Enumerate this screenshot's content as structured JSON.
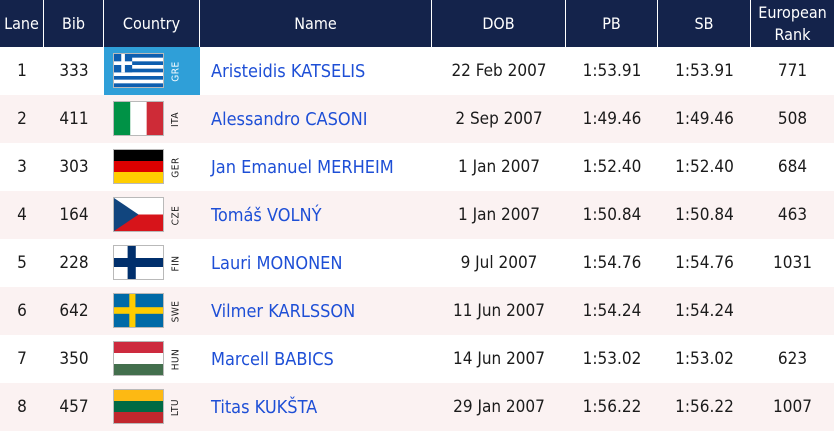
{
  "header": {
    "lane": "Lane",
    "bib": "Bib",
    "country": "Country",
    "name": "Name",
    "dob": "DOB",
    "pb": "PB",
    "sb": "SB",
    "rank_line1": "European",
    "rank_line2": "Rank"
  },
  "colors": {
    "header_bg": "#14234b",
    "row_alt_bg": "#fbf2f2",
    "name_link": "#1e4fd6",
    "selected_country_bg": "#2f9fd8"
  },
  "rows": [
    {
      "lane": "1",
      "bib": "333",
      "country_code": "GRE",
      "flag_icon": "greece-flag-icon",
      "name": "Aristeidis KATSELIS",
      "dob": "22 Feb 2007",
      "pb": "1:53.91",
      "sb": "1:53.91",
      "rank": "771"
    },
    {
      "lane": "2",
      "bib": "411",
      "country_code": "ITA",
      "flag_icon": "italy-flag-icon",
      "name": "Alessandro CASONI",
      "dob": "2 Sep 2007",
      "pb": "1:49.46",
      "sb": "1:49.46",
      "rank": "508"
    },
    {
      "lane": "3",
      "bib": "303",
      "country_code": "GER",
      "flag_icon": "germany-flag-icon",
      "name": "Jan Emanuel MERHEIM",
      "dob": "1 Jan 2007",
      "pb": "1:52.40",
      "sb": "1:52.40",
      "rank": "684"
    },
    {
      "lane": "4",
      "bib": "164",
      "country_code": "CZE",
      "flag_icon": "czechia-flag-icon",
      "name": "Tomáš VOLNÝ",
      "dob": "1 Jan 2007",
      "pb": "1:50.84",
      "sb": "1:50.84",
      "rank": "463"
    },
    {
      "lane": "5",
      "bib": "228",
      "country_code": "FIN",
      "flag_icon": "finland-flag-icon",
      "name": "Lauri MONONEN",
      "dob": "9 Jul 2007",
      "pb": "1:54.76",
      "sb": "1:54.76",
      "rank": "1031"
    },
    {
      "lane": "6",
      "bib": "642",
      "country_code": "SWE",
      "flag_icon": "sweden-flag-icon",
      "name": "Vilmer KARLSSON",
      "dob": "11 Jun 2007",
      "pb": "1:54.24",
      "sb": "1:54.24",
      "rank": ""
    },
    {
      "lane": "7",
      "bib": "350",
      "country_code": "HUN",
      "flag_icon": "hungary-flag-icon",
      "name": "Marcell BABICS",
      "dob": "14 Jun 2007",
      "pb": "1:53.02",
      "sb": "1:53.02",
      "rank": "623"
    },
    {
      "lane": "8",
      "bib": "457",
      "country_code": "LTU",
      "flag_icon": "lithuania-flag-icon",
      "name": "Titas KUKŠTA",
      "dob": "29 Jan 2007",
      "pb": "1:56.22",
      "sb": "1:56.22",
      "rank": "1007"
    }
  ]
}
